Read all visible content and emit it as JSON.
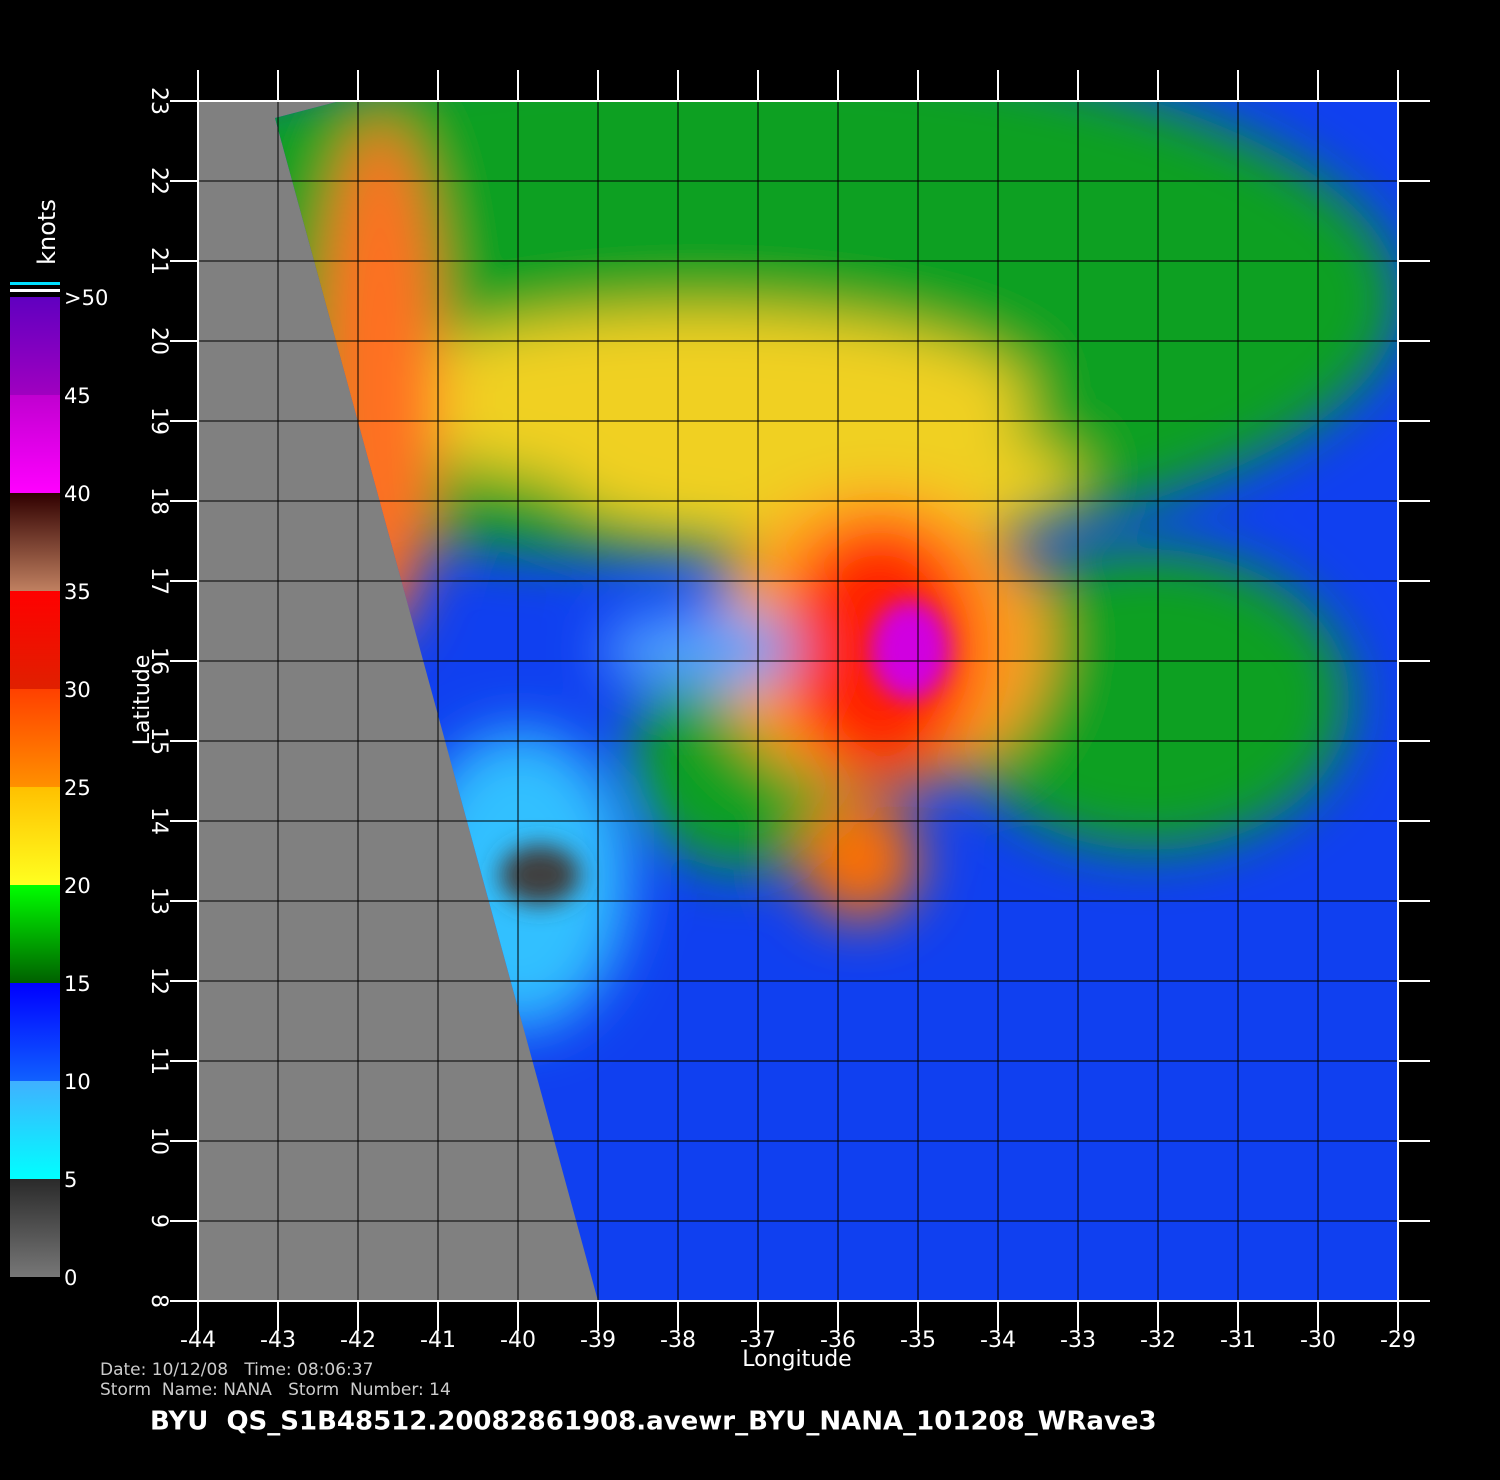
{
  "chart_data": {
    "type": "map",
    "xlabel": "Longitude",
    "ylabel": "Latitude",
    "xlim": [
      -44,
      -29
    ],
    "ylim": [
      8,
      23
    ],
    "xticks": [
      -44,
      -43,
      -42,
      -41,
      -40,
      -39,
      -38,
      -37,
      -36,
      -35,
      -34,
      -33,
      -32,
      -31,
      -30,
      -29
    ],
    "yticks": [
      8,
      9,
      10,
      11,
      12,
      13,
      14,
      15,
      16,
      17,
      18,
      19,
      20,
      21,
      22,
      23
    ],
    "grid": true,
    "colorbar": {
      "label": "knots",
      "ticks": [
        0,
        5,
        10,
        15,
        20,
        25,
        30,
        35,
        40,
        45,
        {
          "value": 50,
          "label": ">50"
        }
      ],
      "colors": [
        [
          "#777777",
          "#2a2a2a"
        ],
        [
          "#00ffff",
          "#40b0ff"
        ],
        [
          "#1060ff",
          "#0000ff"
        ],
        [
          "#006000",
          "#00ff00"
        ],
        [
          "#ffff20",
          "#ffc000"
        ],
        [
          "#ff9000",
          "#ff4000"
        ],
        [
          "#e02000",
          "#ff0000"
        ],
        [
          "#c08060",
          "#300000"
        ],
        [
          "#ff00ff",
          "#c000d0"
        ],
        [
          "#a000c0",
          "#6000c0"
        ]
      ]
    },
    "annotations": [
      "Date: 10/12/08   Time: 08:06:37",
      "Storm  Name: NANA   Storm  Number: 14"
    ],
    "title": "BYU  QS_S1B48512.20082861908.avewr_BYU_NANA_101208_WRave3"
  }
}
